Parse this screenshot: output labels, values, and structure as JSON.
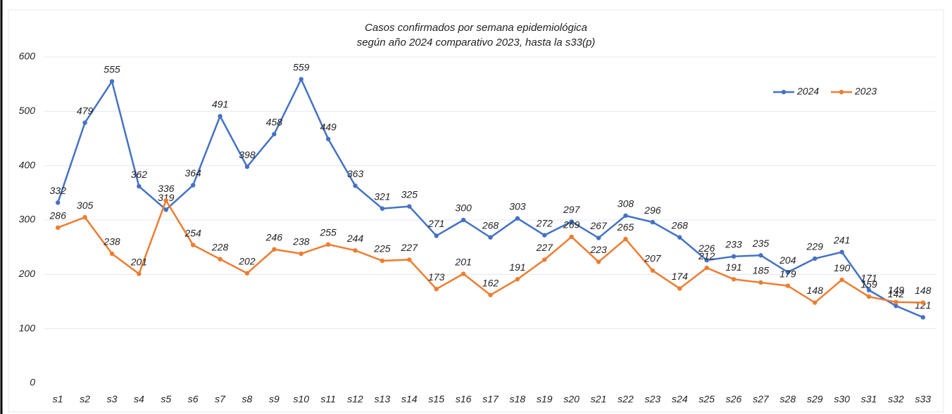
{
  "chart_data": {
    "type": "line",
    "title": [
      "Casos confirmados por semana epidemiológica",
      "según año 2024 comparativo 2023, hasta la s33(p)"
    ],
    "categories": [
      "s1",
      "s2",
      "s3",
      "s4",
      "s5",
      "s6",
      "s7",
      "s8",
      "s9",
      "s10",
      "s11",
      "s12",
      "s13",
      "s14",
      "s15",
      "s16",
      "s17",
      "s18",
      "s19",
      "s20",
      "s21",
      "s22",
      "s23",
      "s24",
      "s25",
      "s26",
      "s27",
      "s28",
      "s29",
      "s30",
      "s31",
      "s32",
      "s33"
    ],
    "series": [
      {
        "name": "2024",
        "color": "#4472c4",
        "values": [
          332,
          479,
          555,
          362,
          319,
          364,
          491,
          398,
          458,
          559,
          449,
          363,
          321,
          325,
          271,
          300,
          268,
          303,
          272,
          297,
          267,
          308,
          296,
          268,
          226,
          233,
          235,
          204,
          229,
          241,
          171,
          142,
          121
        ]
      },
      {
        "name": "2023",
        "color": "#ed7d31",
        "values": [
          286,
          305,
          238,
          201,
          336,
          254,
          228,
          202,
          246,
          238,
          255,
          244,
          225,
          227,
          173,
          201,
          162,
          191,
          227,
          269,
          223,
          265,
          207,
          174,
          212,
          191,
          185,
          179,
          148,
          190,
          159,
          149,
          148
        ]
      }
    ],
    "ylim": [
      0,
      600
    ],
    "yticks": [
      0,
      100,
      200,
      300,
      400,
      500,
      600
    ],
    "grid": true,
    "legend": "upper right"
  }
}
